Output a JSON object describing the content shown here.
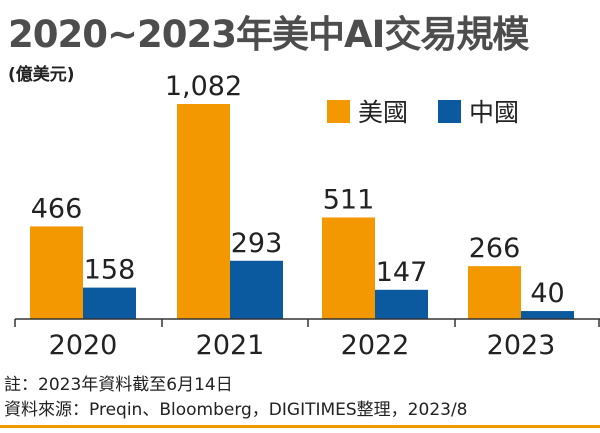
{
  "title": "2020~2023年美中AI交易規模",
  "unit": "(億美元)",
  "colors": {
    "us": "#f39800",
    "cn": "#0b5aa0",
    "axis": "#333333",
    "rule": "#f39800"
  },
  "legend": [
    {
      "name": "美國",
      "color_key": "us"
    },
    {
      "name": "中國",
      "color_key": "cn"
    }
  ],
  "chart_data": {
    "type": "bar",
    "categories": [
      "2020",
      "2021",
      "2022",
      "2023"
    ],
    "series": [
      {
        "name": "美國",
        "values": [
          466,
          1082,
          511,
          266
        ],
        "labels": [
          "466",
          "1,082",
          "511",
          "266"
        ]
      },
      {
        "name": "中國",
        "values": [
          158,
          293,
          147,
          40
        ],
        "labels": [
          "158",
          "293",
          "147",
          "40"
        ]
      }
    ],
    "title": "2020~2023年美中AI交易規模",
    "ylabel": "(億美元)",
    "ylim": [
      0,
      1082
    ],
    "grid": false,
    "legend": "top-right"
  },
  "footnotes": {
    "note": "註：2023年資料截至6月14日",
    "source": "資料來源：Preqin、Bloomberg，DIGITIMES整理，2023/8"
  }
}
